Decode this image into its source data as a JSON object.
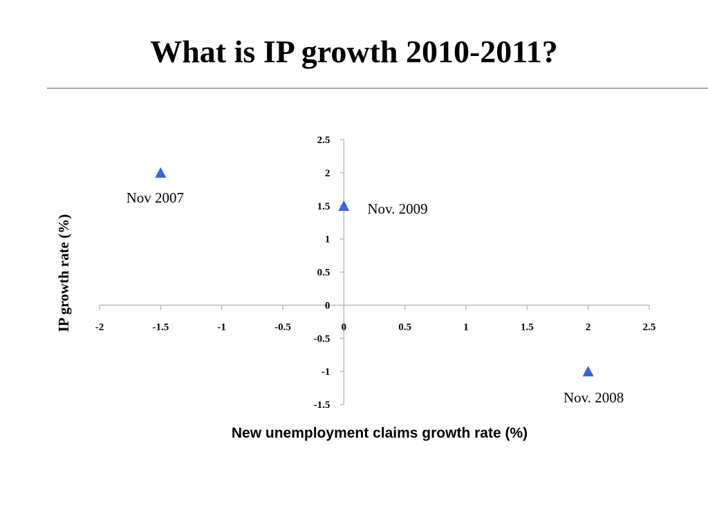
{
  "slide": {
    "title": "What is IP growth 2010-2011?"
  },
  "chart_data": {
    "type": "scatter",
    "xlabel": "New unemployment claims growth rate (%)",
    "ylabel": "IP growth rate (%)",
    "xlim": [
      -2,
      2.5
    ],
    "ylim": [
      -1.5,
      2.5
    ],
    "x_ticks": [
      "-2",
      "-1.5",
      "-1",
      "-0.5",
      "0",
      "0.5",
      "1",
      "1.5",
      "2",
      "2.5"
    ],
    "y_ticks": [
      "2.5",
      "2",
      "1.5",
      "1",
      "0.5",
      "0",
      "-0.5",
      "-1",
      "-1.5"
    ],
    "grid": false,
    "marker": "triangle",
    "marker_color": "#3366e6",
    "axis_color": "#b0b0b0",
    "points": [
      {
        "x": -1.5,
        "y": 2,
        "label": "Nov 2007"
      },
      {
        "x": 0,
        "y": 1.5,
        "label": "Nov. 2009"
      },
      {
        "x": 2,
        "y": -1,
        "label": "Nov. 2008"
      }
    ]
  }
}
